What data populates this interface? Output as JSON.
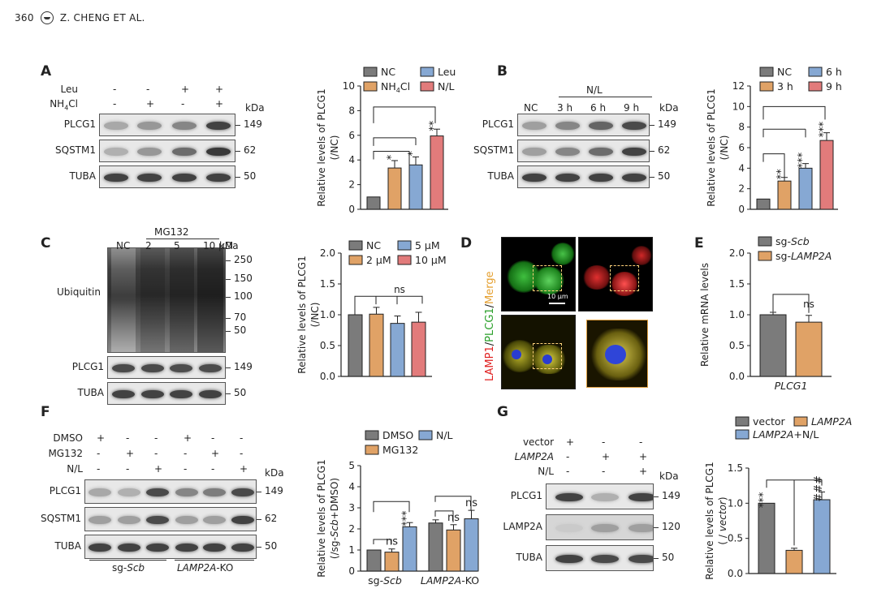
{
  "header": {
    "page_number": "360",
    "authors": "Z. CHENG ET AL."
  },
  "colors": {
    "gray": "#7b7b7b",
    "orange": "#e0a266",
    "blue": "#86a8d3",
    "red": "#e27b7b"
  },
  "panels": {
    "A": {
      "label": "A",
      "rows": [
        [
          "Leu",
          "-",
          "-",
          "+",
          "+"
        ],
        [
          "NH4Cl",
          "-",
          "+",
          "-",
          "+"
        ]
      ],
      "kda": "kDa",
      "blots": [
        {
          "name": "PLCG1",
          "mw": "149"
        },
        {
          "name": "SQSTM1",
          "mw": "62"
        },
        {
          "name": "TUBA",
          "mw": "50"
        }
      ]
    },
    "B": {
      "label": "B",
      "treatment": "N/L",
      "lanes": [
        "NC",
        "3 h",
        "6 h",
        "9 h"
      ],
      "kda": "kDa",
      "blots": [
        {
          "name": "PLCG1",
          "mw": "149"
        },
        {
          "name": "SQSTM1",
          "mw": "62"
        },
        {
          "name": "TUBA",
          "mw": "50"
        }
      ]
    },
    "C": {
      "label": "C",
      "treatment": "MG132",
      "lanes": [
        "NC",
        "2",
        "5",
        "10 μM"
      ],
      "kda": "kDa",
      "ubiquitin_label": "Ubiquitin",
      "ladder": [
        "250",
        "150",
        "100",
        "70",
        "50"
      ],
      "blots": [
        {
          "name": "PLCG1",
          "mw": "149"
        },
        {
          "name": "TUBA",
          "mw": "50"
        }
      ]
    },
    "D": {
      "label": "D",
      "side_label": [
        "LAMP1",
        "/",
        "PLCG1",
        "/",
        "Merge"
      ],
      "scale_bar": "10 μm"
    },
    "E": {
      "label": "E"
    },
    "F": {
      "label": "F",
      "rows": [
        [
          "DMSO",
          "+",
          "-",
          "-",
          "+",
          "-",
          "-"
        ],
        [
          "MG132",
          "-",
          "+",
          "-",
          "-",
          "+",
          "-"
        ],
        [
          "N/L",
          "-",
          "-",
          "+",
          "-",
          "-",
          "+"
        ]
      ],
      "kda": "kDa",
      "blots": [
        {
          "name": "PLCG1",
          "mw": "149"
        },
        {
          "name": "SQSTM1",
          "mw": "62"
        },
        {
          "name": "TUBA",
          "mw": "50"
        }
      ],
      "groups": [
        "sg-",
        "Scb",
        "LAMP2A",
        "-KO"
      ]
    },
    "G": {
      "label": "G",
      "rows": [
        [
          "vector",
          "+",
          "-",
          "-"
        ],
        [
          "LAMP2A",
          "-",
          "+",
          "+"
        ],
        [
          "N/L",
          "-",
          "-",
          "+"
        ]
      ],
      "kda": "kDa",
      "blots": [
        {
          "name": "PLCG1",
          "mw": "149"
        },
        {
          "name": "LAMP2A",
          "mw": "120"
        },
        {
          "name": "TUBA",
          "mw": "50"
        }
      ]
    }
  },
  "chart_data": [
    {
      "id": "A",
      "type": "bar",
      "ylabel": [
        "Relative levels of PLCG1",
        "(/NC)"
      ],
      "ylim": [
        0,
        10
      ],
      "yticks": [
        "0",
        "2",
        "4",
        "6",
        "8",
        "10"
      ],
      "legend": [
        "NC",
        "Leu",
        "NH4Cl",
        "N/L"
      ],
      "categories": [
        "NC",
        "NH4Cl",
        "Leu",
        "N/L"
      ],
      "values": [
        1.0,
        3.35,
        3.6,
        5.95
      ],
      "errors": [
        0,
        0.6,
        0.65,
        0.55
      ],
      "sig": [
        "",
        "*",
        "*",
        "**"
      ]
    },
    {
      "id": "B",
      "type": "bar",
      "ylabel": [
        "Relative levels of PLCG1",
        "(/NC)"
      ],
      "ylim": [
        0,
        12
      ],
      "yticks": [
        "0",
        "2",
        "4",
        "6",
        "8",
        "10",
        "12"
      ],
      "legend": [
        "NC",
        "6 h",
        "3 h",
        "9 h"
      ],
      "categories": [
        "NC",
        "3 h",
        "6 h",
        "9 h"
      ],
      "values": [
        1.0,
        2.75,
        4.0,
        6.7
      ],
      "errors": [
        0,
        0.35,
        0.45,
        0.75
      ],
      "sig": [
        "",
        "**",
        "***",
        "***"
      ]
    },
    {
      "id": "C",
      "type": "bar",
      "ylabel": [
        "Relative levels of PLCG1",
        "(/NC)"
      ],
      "ylim": [
        0,
        2.0
      ],
      "yticks": [
        "0.0",
        "0.5",
        "1.0",
        "1.5",
        "2.0"
      ],
      "legend": [
        "NC",
        "5 μM",
        "2 μM",
        "10 μM"
      ],
      "categories": [
        "NC",
        "2 μM",
        "5 μM",
        "10 μM"
      ],
      "values": [
        1.0,
        1.01,
        0.86,
        0.88
      ],
      "errors": [
        0,
        0.11,
        0.12,
        0.16
      ],
      "ns": "ns"
    },
    {
      "id": "E",
      "type": "bar",
      "ylabel": [
        "Relative mRNA  levels"
      ],
      "ylim": [
        0,
        2.0
      ],
      "yticks": [
        "0.0",
        "0.5",
        "1.0",
        "1.5",
        "2.0"
      ],
      "legend": [
        "sg-Scb",
        "sg-LAMP2A"
      ],
      "xlabel": "PLCG1",
      "values": [
        1.0,
        0.88
      ],
      "errors": [
        0.04,
        0.11
      ],
      "ns": "ns"
    },
    {
      "id": "F",
      "type": "bar",
      "ylabel": [
        "Relative levels of PLCG1",
        "(/sg-Scb+DMSO)"
      ],
      "ylim": [
        0,
        5
      ],
      "yticks": [
        "0",
        "1",
        "2",
        "3",
        "4",
        "5"
      ],
      "legend": [
        "DMSO",
        "N/L",
        "MG132"
      ],
      "categories": [
        "sg-Scb",
        "LAMP2A-KO"
      ],
      "series": [
        {
          "name": "DMSO",
          "values": [
            1.0,
            2.28
          ],
          "errors": [
            0,
            0.15
          ]
        },
        {
          "name": "MG132",
          "values": [
            0.9,
            1.95
          ],
          "errors": [
            0.15,
            0.25
          ]
        },
        {
          "name": "N/L",
          "values": [
            2.1,
            2.48
          ],
          "errors": [
            0.2,
            0.4
          ]
        }
      ],
      "sig": [
        "",
        "ns",
        "***",
        "",
        "ns",
        "ns"
      ]
    },
    {
      "id": "G",
      "type": "bar",
      "ylabel": [
        "Relative levels of PLCG1",
        "( / vector)"
      ],
      "ylim": [
        0,
        1.5
      ],
      "yticks": [
        "0.0",
        "0.5",
        "1.0",
        "1.5"
      ],
      "legend": [
        "vector",
        "LAMP2A",
        "LAMP2A+N/L"
      ],
      "categories": [
        "vector",
        "LAMP2A",
        "LAMP2A+N/L"
      ],
      "values": [
        1.0,
        0.33,
        1.05
      ],
      "errors": [
        0,
        0.03,
        0.11
      ],
      "sig": [
        "***",
        "",
        "###"
      ]
    }
  ]
}
